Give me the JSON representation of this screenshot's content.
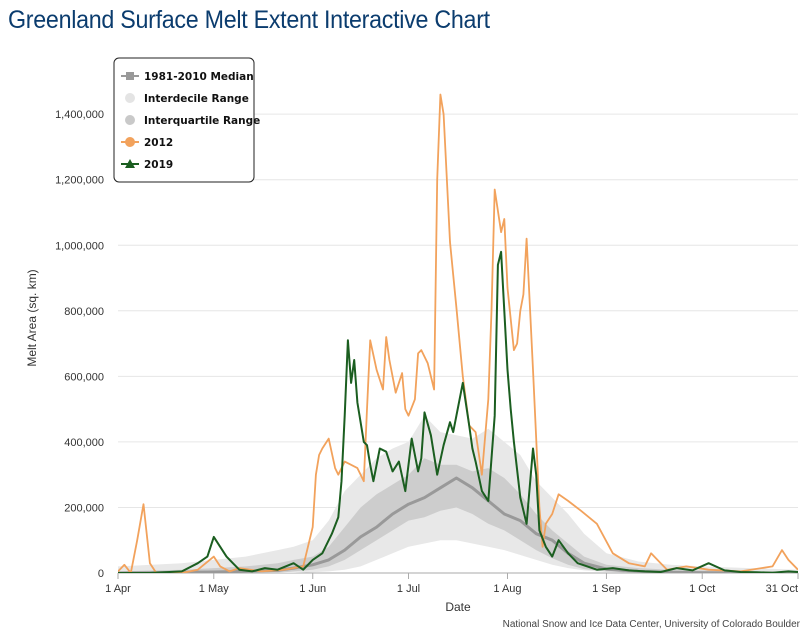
{
  "header": {
    "title": "Greenland Surface Melt Extent Interactive Chart"
  },
  "chart_data": {
    "type": "line",
    "xlabel": "Date",
    "ylabel": "Melt Area (sq. km)",
    "x_ticks": [
      {
        "day": 0,
        "label": "1 Apr"
      },
      {
        "day": 30,
        "label": "1 May"
      },
      {
        "day": 61,
        "label": "1 Jun"
      },
      {
        "day": 91,
        "label": "1 Jul"
      },
      {
        "day": 122,
        "label": "1 Aug"
      },
      {
        "day": 153,
        "label": "1 Sep"
      },
      {
        "day": 183,
        "label": "1 Oct"
      },
      {
        "day": 213,
        "label": "31 Oct"
      }
    ],
    "y_ticks": [
      {
        "value": 0,
        "label": "0"
      },
      {
        "value": 200000,
        "label": "200,000"
      },
      {
        "value": 400000,
        "label": "400,000"
      },
      {
        "value": 600000,
        "label": "600,000"
      },
      {
        "value": 800000,
        "label": "800,000"
      },
      {
        "value": 1000000,
        "label": "1,000,000"
      },
      {
        "value": 1200000,
        "label": "1,200,000"
      },
      {
        "value": 1400000,
        "label": "1,400,000"
      }
    ],
    "xlim": [
      0,
      213
    ],
    "ylim": [
      0,
      1550000
    ],
    "grid": true,
    "legend_position": "top-left",
    "legend": [
      {
        "label": "1981-2010 Median",
        "color": "#999999",
        "marker": "square"
      },
      {
        "label": "Interdecile Range",
        "color": "#e4e4e4",
        "marker": "circle"
      },
      {
        "label": "Interquartile Range",
        "color": "#c9c9c9",
        "marker": "circle"
      },
      {
        "label": "2012",
        "color": "#f2a25c",
        "marker": "circle"
      },
      {
        "label": "2019",
        "color": "#1b5e20",
        "marker": "triangle"
      }
    ],
    "bands": {
      "interdecile": {
        "color": "#e8e8e8",
        "x": [
          0,
          20,
          30,
          40,
          50,
          55,
          61,
          66,
          71,
          76,
          81,
          86,
          91,
          96,
          101,
          106,
          111,
          116,
          121,
          126,
          131,
          136,
          141,
          146,
          153,
          163,
          173,
          183,
          198,
          213
        ],
        "low": [
          0,
          0,
          0,
          0,
          0,
          0,
          2000,
          5000,
          10000,
          20000,
          40000,
          60000,
          80000,
          90000,
          100000,
          100000,
          90000,
          80000,
          70000,
          55000,
          40000,
          25000,
          15000,
          8000,
          3000,
          0,
          0,
          0,
          0,
          0
        ],
        "high": [
          20000,
          30000,
          40000,
          50000,
          70000,
          80000,
          100000,
          160000,
          250000,
          300000,
          350000,
          380000,
          400000,
          480000,
          430000,
          420000,
          410000,
          440000,
          400000,
          360000,
          280000,
          230000,
          180000,
          120000,
          60000,
          35000,
          25000,
          20000,
          15000,
          10000
        ]
      },
      "interquartile": {
        "color": "#cdcdcd",
        "x": [
          0,
          20,
          30,
          40,
          50,
          55,
          61,
          66,
          71,
          76,
          81,
          86,
          91,
          96,
          101,
          106,
          111,
          116,
          121,
          126,
          131,
          136,
          141,
          146,
          153,
          163,
          173,
          183,
          198,
          213
        ],
        "low": [
          0,
          0,
          0,
          0,
          0,
          5000,
          10000,
          20000,
          40000,
          70000,
          100000,
          130000,
          160000,
          170000,
          190000,
          200000,
          180000,
          150000,
          130000,
          100000,
          70000,
          45000,
          25000,
          12000,
          5000,
          0,
          0,
          0,
          0,
          0
        ],
        "high": [
          5000,
          10000,
          15000,
          20000,
          30000,
          40000,
          50000,
          80000,
          140000,
          200000,
          240000,
          270000,
          300000,
          350000,
          330000,
          330000,
          310000,
          320000,
          290000,
          240000,
          180000,
          130000,
          90000,
          50000,
          25000,
          15000,
          10000,
          8000,
          5000,
          3000
        ]
      }
    },
    "series": [
      {
        "name": "1981-2010 Median",
        "color": "#999999",
        "x": [
          0,
          10,
          20,
          30,
          40,
          50,
          55,
          61,
          66,
          71,
          76,
          81,
          86,
          91,
          96,
          101,
          106,
          111,
          116,
          121,
          126,
          131,
          136,
          141,
          146,
          153,
          163,
          173,
          183,
          198,
          213
        ],
        "y": [
          0,
          1000,
          2000,
          3000,
          5000,
          8000,
          15000,
          25000,
          40000,
          70000,
          110000,
          140000,
          180000,
          210000,
          230000,
          260000,
          290000,
          260000,
          220000,
          180000,
          160000,
          120000,
          100000,
          60000,
          30000,
          12000,
          5000,
          2000,
          1000,
          0,
          0
        ]
      },
      {
        "name": "2012",
        "color": "#f2a25c",
        "x": [
          0,
          2,
          4,
          6,
          8,
          10,
          12,
          20,
          25,
          30,
          32,
          35,
          38,
          45,
          52,
          58,
          61,
          62,
          63,
          64,
          66,
          68,
          69,
          71,
          73,
          75,
          77,
          78,
          79,
          81,
          83,
          84,
          85,
          87,
          89,
          90,
          91,
          93,
          94,
          95,
          97,
          99,
          100,
          101,
          102,
          104,
          105,
          106,
          108,
          110,
          112,
          114,
          116,
          117,
          118,
          120,
          121,
          122,
          124,
          125,
          126,
          127,
          128,
          130,
          132,
          133,
          134,
          136,
          138,
          141,
          145,
          150,
          155,
          160,
          165,
          167,
          170,
          172,
          178,
          185,
          195,
          205,
          208,
          210,
          213
        ],
        "y": [
          5000,
          25000,
          0,
          100000,
          210000,
          30000,
          0,
          0,
          10000,
          50000,
          20000,
          5000,
          15000,
          5000,
          10000,
          20000,
          140000,
          300000,
          360000,
          380000,
          410000,
          320000,
          300000,
          340000,
          330000,
          320000,
          280000,
          500000,
          710000,
          620000,
          560000,
          720000,
          650000,
          550000,
          610000,
          500000,
          480000,
          530000,
          670000,
          680000,
          640000,
          560000,
          1200000,
          1460000,
          1400000,
          1010000,
          910000,
          810000,
          600000,
          450000,
          430000,
          300000,
          530000,
          800000,
          1170000,
          1040000,
          1080000,
          870000,
          680000,
          700000,
          800000,
          850000,
          1020000,
          620000,
          200000,
          80000,
          150000,
          180000,
          240000,
          220000,
          190000,
          150000,
          60000,
          30000,
          20000,
          60000,
          30000,
          10000,
          20000,
          10000,
          5000,
          20000,
          70000,
          40000,
          10000
        ]
      },
      {
        "name": "2019",
        "color": "#1b5e20",
        "x": [
          0,
          10,
          20,
          25,
          28,
          30,
          34,
          36,
          38,
          42,
          46,
          50,
          55,
          58,
          61,
          64,
          67,
          69,
          70,
          71,
          72,
          73,
          74,
          75,
          77,
          78,
          79,
          80,
          82,
          84,
          86,
          88,
          90,
          92,
          94,
          95,
          96,
          98,
          100,
          102,
          104,
          105,
          106,
          108,
          110,
          111,
          112,
          114,
          116,
          118,
          119,
          120,
          121,
          122,
          123,
          124,
          126,
          128,
          130,
          131,
          132,
          134,
          136,
          138,
          141,
          144,
          147,
          150,
          155,
          160,
          165,
          170,
          175,
          180,
          185,
          190,
          195,
          200,
          205,
          210,
          213
        ],
        "y": [
          0,
          0,
          5000,
          30000,
          50000,
          110000,
          50000,
          30000,
          10000,
          5000,
          15000,
          10000,
          30000,
          10000,
          40000,
          60000,
          120000,
          170000,
          280000,
          480000,
          710000,
          580000,
          650000,
          520000,
          400000,
          390000,
          330000,
          280000,
          380000,
          370000,
          310000,
          340000,
          250000,
          410000,
          310000,
          350000,
          490000,
          420000,
          300000,
          390000,
          460000,
          430000,
          480000,
          580000,
          450000,
          380000,
          340000,
          250000,
          220000,
          480000,
          940000,
          980000,
          800000,
          620000,
          500000,
          400000,
          230000,
          150000,
          380000,
          300000,
          130000,
          80000,
          50000,
          100000,
          60000,
          30000,
          20000,
          10000,
          15000,
          8000,
          5000,
          3000,
          15000,
          8000,
          30000,
          8000,
          3000,
          2000,
          1000,
          5000,
          3000
        ]
      }
    ],
    "credit": "National Snow and Ice Data Center, University of Colorado Boulder"
  }
}
